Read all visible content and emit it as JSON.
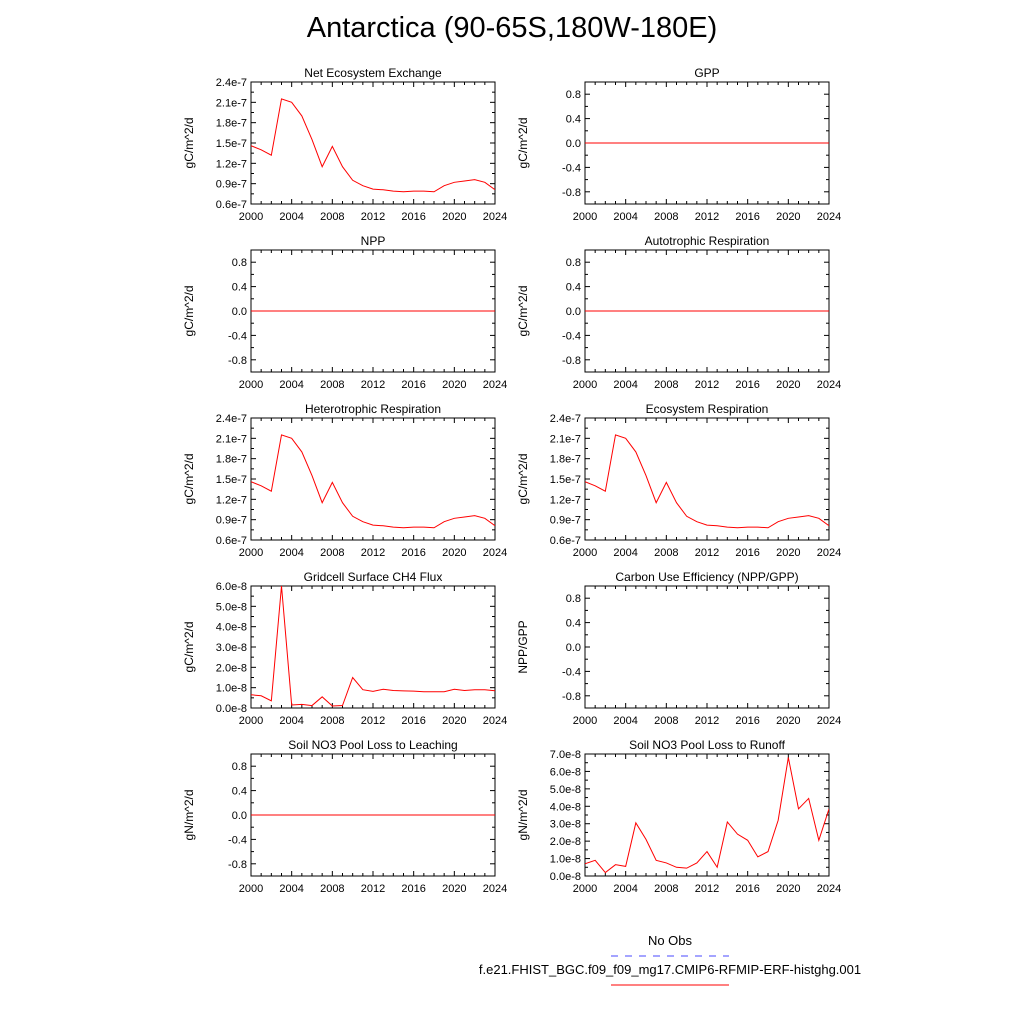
{
  "title": "Antarctica (90-65S,180W-180E)",
  "colors": {
    "series": "#ff0000",
    "obs": "#4a4aff",
    "axis": "#000000"
  },
  "legend": {
    "obs_label": "No Obs",
    "case_label": "f.e21.FHIST_BGC.f09_f09_mg17.CMIP6-RFMIP-ERF-histghg.001"
  },
  "chart_data": [
    {
      "type": "line",
      "title": "Net Ecosystem Exchange",
      "ylabel": "gC/m^2/d",
      "xlim": [
        2000,
        2024
      ],
      "ylim": [
        6e-08,
        2.4e-07
      ],
      "xticks": [
        "2000",
        "2004",
        "2008",
        "2012",
        "2016",
        "2020",
        "2024"
      ],
      "yticks": [
        {
          "v": 2.4e-07,
          "label": "2.4e-7"
        },
        {
          "v": 2.1e-07,
          "label": "2.1e-7"
        },
        {
          "v": 1.8e-07,
          "label": "1.8e-7"
        },
        {
          "v": 1.5e-07,
          "label": "1.5e-7"
        },
        {
          "v": 1.2e-07,
          "label": "1.2e-7"
        },
        {
          "v": 9e-08,
          "label": "0.9e-7"
        },
        {
          "v": 6e-08,
          "label": "0.6e-7"
        }
      ],
      "x": [
        2000,
        2001,
        2002,
        2003,
        2004,
        2005,
        2006,
        2007,
        2008,
        2009,
        2010,
        2011,
        2012,
        2013,
        2014,
        2015,
        2016,
        2017,
        2018,
        2019,
        2020,
        2021,
        2022,
        2023,
        2024
      ],
      "y": [
        1.46e-07,
        1.4e-07,
        1.32e-07,
        2.15e-07,
        2.1e-07,
        1.9e-07,
        1.55e-07,
        1.15e-07,
        1.45e-07,
        1.15e-07,
        9.5e-08,
        8.7e-08,
        8.2e-08,
        8.1e-08,
        7.9e-08,
        7.8e-08,
        7.9e-08,
        7.9e-08,
        7.8e-08,
        8.7e-08,
        9.2e-08,
        9.4e-08,
        9.6e-08,
        9.2e-08,
        8.1e-08
      ]
    },
    {
      "type": "line",
      "title": "GPP",
      "ylabel": "gC/m^2/d",
      "xlim": [
        2000,
        2024
      ],
      "ylim": [
        -1,
        1
      ],
      "xticks": [
        "2000",
        "2004",
        "2008",
        "2012",
        "2016",
        "2020",
        "2024"
      ],
      "yticks": [
        {
          "v": 0.8,
          "label": "0.8"
        },
        {
          "v": 0.4,
          "label": "0.4"
        },
        {
          "v": 0,
          "label": "0.0"
        },
        {
          "v": -0.4,
          "label": "-0.4"
        },
        {
          "v": -0.8,
          "label": "-0.8"
        }
      ],
      "x": [
        2000,
        2024
      ],
      "y": [
        0,
        0
      ]
    },
    {
      "type": "line",
      "title": "NPP",
      "ylabel": "gC/m^2/d",
      "xlim": [
        2000,
        2024
      ],
      "ylim": [
        -1,
        1
      ],
      "xticks": [
        "2000",
        "2004",
        "2008",
        "2012",
        "2016",
        "2020",
        "2024"
      ],
      "yticks": [
        {
          "v": 0.8,
          "label": "0.8"
        },
        {
          "v": 0.4,
          "label": "0.4"
        },
        {
          "v": 0,
          "label": "0.0"
        },
        {
          "v": -0.4,
          "label": "-0.4"
        },
        {
          "v": -0.8,
          "label": "-0.8"
        }
      ],
      "x": [
        2000,
        2024
      ],
      "y": [
        0,
        0
      ]
    },
    {
      "type": "line",
      "title": "Autotrophic Respiration",
      "ylabel": "gC/m^2/d",
      "xlim": [
        2000,
        2024
      ],
      "ylim": [
        -1,
        1
      ],
      "xticks": [
        "2000",
        "2004",
        "2008",
        "2012",
        "2016",
        "2020",
        "2024"
      ],
      "yticks": [
        {
          "v": 0.8,
          "label": "0.8"
        },
        {
          "v": 0.4,
          "label": "0.4"
        },
        {
          "v": 0,
          "label": "0.0"
        },
        {
          "v": -0.4,
          "label": "-0.4"
        },
        {
          "v": -0.8,
          "label": "-0.8"
        }
      ],
      "x": [
        2000,
        2024
      ],
      "y": [
        0,
        0
      ]
    },
    {
      "type": "line",
      "title": "Heterotrophic Respiration",
      "ylabel": "gC/m^2/d",
      "xlim": [
        2000,
        2024
      ],
      "ylim": [
        6e-08,
        2.4e-07
      ],
      "xticks": [
        "2000",
        "2004",
        "2008",
        "2012",
        "2016",
        "2020",
        "2024"
      ],
      "yticks": [
        {
          "v": 2.4e-07,
          "label": "2.4e-7"
        },
        {
          "v": 2.1e-07,
          "label": "2.1e-7"
        },
        {
          "v": 1.8e-07,
          "label": "1.8e-7"
        },
        {
          "v": 1.5e-07,
          "label": "1.5e-7"
        },
        {
          "v": 1.2e-07,
          "label": "1.2e-7"
        },
        {
          "v": 9e-08,
          "label": "0.9e-7"
        },
        {
          "v": 6e-08,
          "label": "0.6e-7"
        }
      ],
      "x": [
        2000,
        2001,
        2002,
        2003,
        2004,
        2005,
        2006,
        2007,
        2008,
        2009,
        2010,
        2011,
        2012,
        2013,
        2014,
        2015,
        2016,
        2017,
        2018,
        2019,
        2020,
        2021,
        2022,
        2023,
        2024
      ],
      "y": [
        1.46e-07,
        1.4e-07,
        1.32e-07,
        2.15e-07,
        2.1e-07,
        1.9e-07,
        1.55e-07,
        1.15e-07,
        1.45e-07,
        1.15e-07,
        9.5e-08,
        8.7e-08,
        8.2e-08,
        8.1e-08,
        7.9e-08,
        7.8e-08,
        7.9e-08,
        7.9e-08,
        7.8e-08,
        8.7e-08,
        9.2e-08,
        9.4e-08,
        9.6e-08,
        9.2e-08,
        8.1e-08
      ]
    },
    {
      "type": "line",
      "title": "Ecosystem Respiration",
      "ylabel": "gC/m^2/d",
      "xlim": [
        2000,
        2024
      ],
      "ylim": [
        6e-08,
        2.4e-07
      ],
      "xticks": [
        "2000",
        "2004",
        "2008",
        "2012",
        "2016",
        "2020",
        "2024"
      ],
      "yticks": [
        {
          "v": 2.4e-07,
          "label": "2.4e-7"
        },
        {
          "v": 2.1e-07,
          "label": "2.1e-7"
        },
        {
          "v": 1.8e-07,
          "label": "1.8e-7"
        },
        {
          "v": 1.5e-07,
          "label": "1.5e-7"
        },
        {
          "v": 1.2e-07,
          "label": "1.2e-7"
        },
        {
          "v": 9e-08,
          "label": "0.9e-7"
        },
        {
          "v": 6e-08,
          "label": "0.6e-7"
        }
      ],
      "x": [
        2000,
        2001,
        2002,
        2003,
        2004,
        2005,
        2006,
        2007,
        2008,
        2009,
        2010,
        2011,
        2012,
        2013,
        2014,
        2015,
        2016,
        2017,
        2018,
        2019,
        2020,
        2021,
        2022,
        2023,
        2024
      ],
      "y": [
        1.46e-07,
        1.4e-07,
        1.32e-07,
        2.15e-07,
        2.1e-07,
        1.9e-07,
        1.55e-07,
        1.15e-07,
        1.45e-07,
        1.15e-07,
        9.5e-08,
        8.7e-08,
        8.2e-08,
        8.1e-08,
        7.9e-08,
        7.8e-08,
        7.9e-08,
        7.9e-08,
        7.8e-08,
        8.7e-08,
        9.2e-08,
        9.4e-08,
        9.6e-08,
        9.2e-08,
        8.1e-08
      ]
    },
    {
      "type": "line",
      "title": "Gridcell Surface CH4 Flux",
      "ylabel": "gC/m^2/d",
      "xlim": [
        2000,
        2024
      ],
      "ylim": [
        0,
        6e-08
      ],
      "xticks": [
        "2000",
        "2004",
        "2008",
        "2012",
        "2016",
        "2020",
        "2024"
      ],
      "yticks": [
        {
          "v": 6e-08,
          "label": "6.0e-8"
        },
        {
          "v": 5e-08,
          "label": "5.0e-8"
        },
        {
          "v": 4e-08,
          "label": "4.0e-8"
        },
        {
          "v": 3e-08,
          "label": "3.0e-8"
        },
        {
          "v": 2e-08,
          "label": "2.0e-8"
        },
        {
          "v": 1e-08,
          "label": "1.0e-8"
        },
        {
          "v": 0,
          "label": "0.0e-8"
        }
      ],
      "x": [
        2000,
        2001,
        2002,
        2003,
        2004,
        2005,
        2006,
        2007,
        2008,
        2009,
        2010,
        2011,
        2012,
        2013,
        2014,
        2015,
        2016,
        2017,
        2018,
        2019,
        2020,
        2021,
        2022,
        2023,
        2024
      ],
      "y": [
        6.5e-09,
        6e-09,
        3.5e-09,
        6e-08,
        1.5e-09,
        1.8e-09,
        1.2e-09,
        5.5e-09,
        1e-09,
        1.2e-09,
        1.5e-08,
        9e-09,
        8.2e-09,
        9.2e-09,
        8.6e-09,
        8.4e-09,
        8.3e-09,
        8e-09,
        8e-09,
        8e-09,
        9.2e-09,
        8.6e-09,
        9e-09,
        9e-09,
        8.5e-09
      ]
    },
    {
      "type": "line",
      "title": "Carbon Use Efficiency (NPP/GPP)",
      "ylabel": "NPP/GPP",
      "xlim": [
        2000,
        2024
      ],
      "ylim": [
        -1,
        1
      ],
      "xticks": [
        "2000",
        "2004",
        "2008",
        "2012",
        "2016",
        "2020",
        "2024"
      ],
      "yticks": [
        {
          "v": 0.8,
          "label": "0.8"
        },
        {
          "v": 0.4,
          "label": "0.4"
        },
        {
          "v": 0,
          "label": "0.0"
        },
        {
          "v": -0.4,
          "label": "-0.4"
        },
        {
          "v": -0.8,
          "label": "-0.8"
        }
      ],
      "x": [],
      "y": []
    },
    {
      "type": "line",
      "title": "Soil NO3 Pool Loss to Leaching",
      "ylabel": "gN/m^2/d",
      "xlim": [
        2000,
        2024
      ],
      "ylim": [
        -1,
        1
      ],
      "xticks": [
        "2000",
        "2004",
        "2008",
        "2012",
        "2016",
        "2020",
        "2024"
      ],
      "yticks": [
        {
          "v": 0.8,
          "label": "0.8"
        },
        {
          "v": 0.4,
          "label": "0.4"
        },
        {
          "v": 0,
          "label": "0.0"
        },
        {
          "v": -0.4,
          "label": "-0.4"
        },
        {
          "v": -0.8,
          "label": "-0.8"
        }
      ],
      "x": [
        2000,
        2024
      ],
      "y": [
        0,
        0
      ]
    },
    {
      "type": "line",
      "title": "Soil NO3 Pool Loss to Runoff",
      "ylabel": "gN/m^2/d",
      "xlim": [
        2000,
        2024
      ],
      "ylim": [
        0,
        7e-08
      ],
      "xticks": [
        "2000",
        "2004",
        "2008",
        "2012",
        "2016",
        "2020",
        "2024"
      ],
      "yticks": [
        {
          "v": 7e-08,
          "label": "7.0e-8"
        },
        {
          "v": 6e-08,
          "label": "6.0e-8"
        },
        {
          "v": 5e-08,
          "label": "5.0e-8"
        },
        {
          "v": 4e-08,
          "label": "4.0e-8"
        },
        {
          "v": 3e-08,
          "label": "3.0e-8"
        },
        {
          "v": 2e-08,
          "label": "2.0e-8"
        },
        {
          "v": 1e-08,
          "label": "1.0e-8"
        },
        {
          "v": 0,
          "label": "0.0e-8"
        }
      ],
      "x": [
        2000,
        2001,
        2002,
        2003,
        2004,
        2005,
        2006,
        2007,
        2008,
        2009,
        2010,
        2011,
        2012,
        2013,
        2014,
        2015,
        2016,
        2017,
        2018,
        2019,
        2020,
        2021,
        2022,
        2023,
        2024
      ],
      "y": [
        7e-09,
        9e-09,
        2e-09,
        6.5e-09,
        5.5e-09,
        3.05e-08,
        2.1e-08,
        9e-09,
        7.5e-09,
        5e-09,
        4.5e-09,
        7.5e-09,
        1.4e-08,
        5e-09,
        3.1e-08,
        2.4e-08,
        2.05e-08,
        1.1e-08,
        1.4e-08,
        3.2e-08,
        6.8e-08,
        3.85e-08,
        4.45e-08,
        2.05e-08,
        3.85e-08
      ]
    }
  ]
}
